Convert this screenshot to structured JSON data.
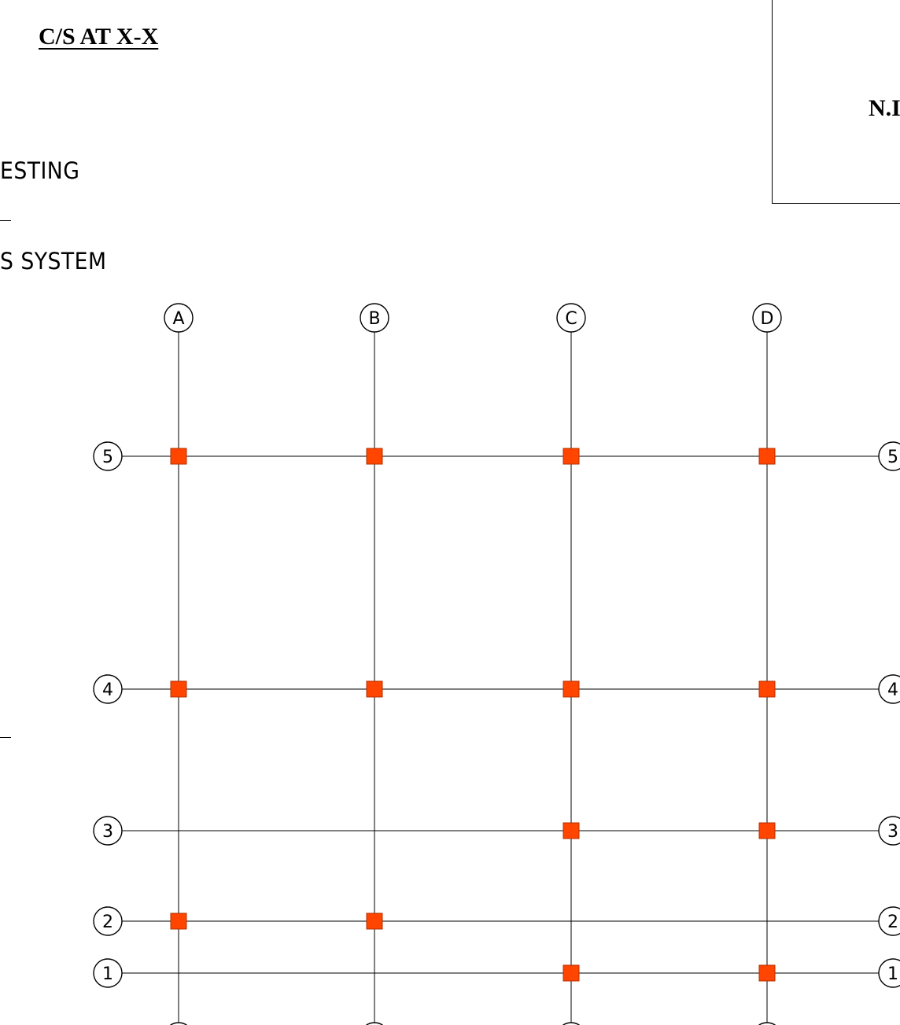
{
  "title": "C/S AT  X-X",
  "notes": [
    "ESTING",
    "S  SYSTEM"
  ],
  "title_block": {
    "text": "N.I"
  },
  "grid": {
    "column_lines": [
      "A",
      "B",
      "C",
      "D"
    ],
    "row_lines": [
      "5",
      "4",
      "3",
      "2",
      "1"
    ],
    "columns_at": [
      {
        "col": "A",
        "row": "5"
      },
      {
        "col": "B",
        "row": "5"
      },
      {
        "col": "C",
        "row": "5"
      },
      {
        "col": "D",
        "row": "5"
      },
      {
        "col": "A",
        "row": "4"
      },
      {
        "col": "B",
        "row": "4"
      },
      {
        "col": "C",
        "row": "4"
      },
      {
        "col": "D",
        "row": "4"
      },
      {
        "col": "C",
        "row": "3"
      },
      {
        "col": "D",
        "row": "3"
      },
      {
        "col": "A",
        "row": "2"
      },
      {
        "col": "B",
        "row": "2"
      },
      {
        "col": "C",
        "row": "1"
      },
      {
        "col": "D",
        "row": "1"
      }
    ],
    "column_color": "#ff4500"
  }
}
